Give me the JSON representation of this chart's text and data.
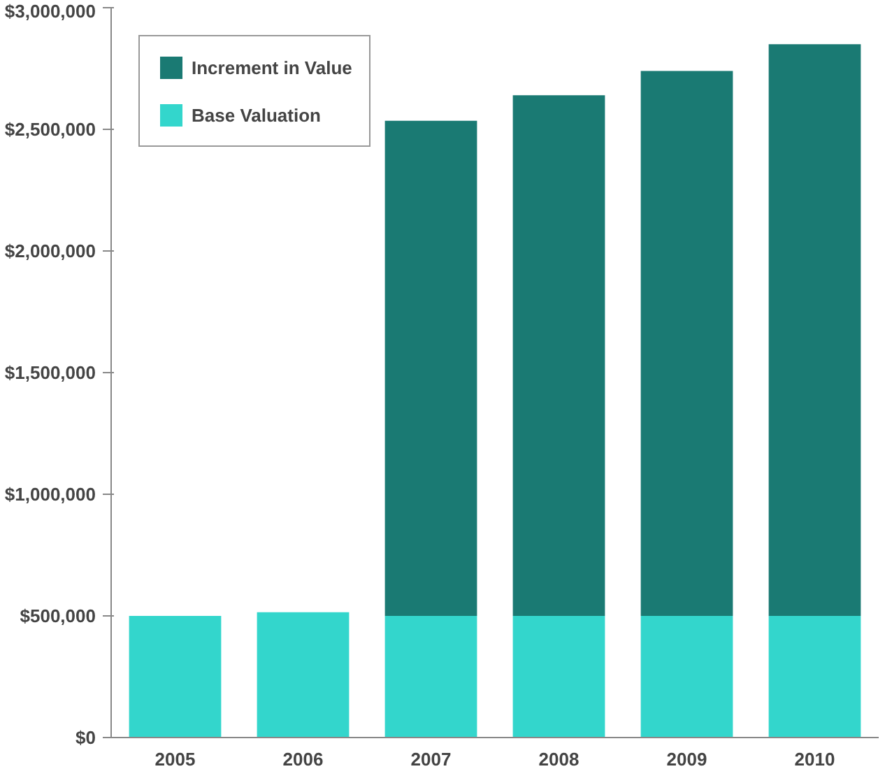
{
  "chart_data": {
    "type": "bar",
    "stacked": true,
    "categories": [
      "2005",
      "2006",
      "2007",
      "2008",
      "2009",
      "2010"
    ],
    "series": [
      {
        "name": "Base Valuation",
        "color": "#33d6cc",
        "values": [
          500000,
          515000,
          500000,
          500000,
          500000,
          500000
        ]
      },
      {
        "name": "Increment in Value",
        "color": "#1a7a73",
        "values": [
          0,
          0,
          2035000,
          2140000,
          2240000,
          2350000
        ]
      }
    ],
    "ylim": [
      0,
      3000000
    ],
    "yticks": [
      {
        "value": 0,
        "label": "$0"
      },
      {
        "value": 500000,
        "label": "$500,000"
      },
      {
        "value": 1000000,
        "label": "$1,000,000"
      },
      {
        "value": 1500000,
        "label": "$1,500,000"
      },
      {
        "value": 2000000,
        "label": "$2,000,000"
      },
      {
        "value": 2500000,
        "label": "$2,500,000"
      },
      {
        "value": 3000000,
        "label": "$3,000,000"
      }
    ],
    "grid": false,
    "legend": "top left"
  }
}
